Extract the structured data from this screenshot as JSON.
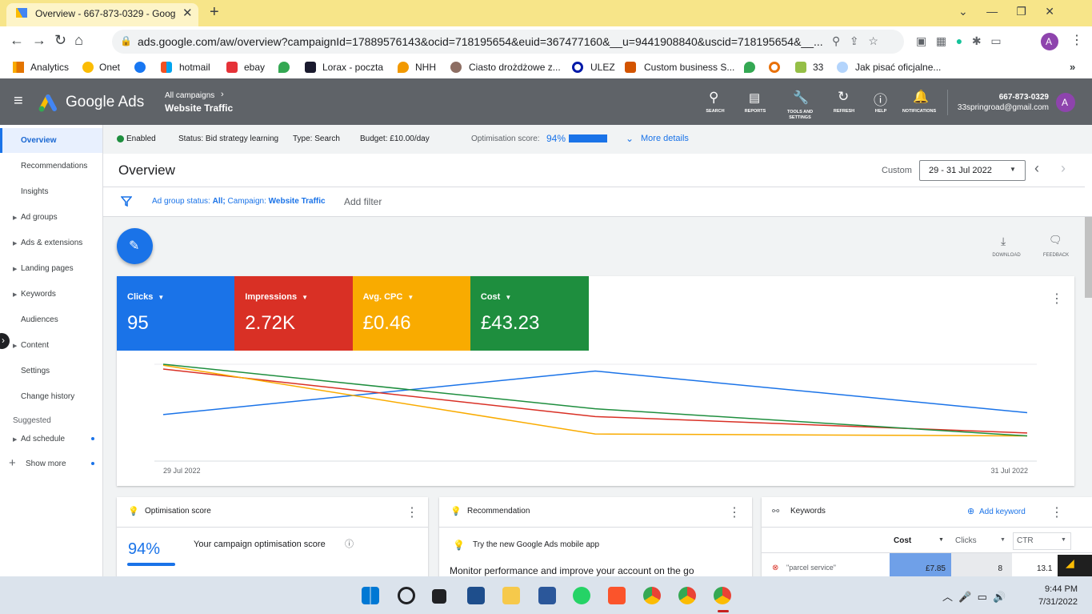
{
  "browser": {
    "tab_title": "Overview - 667-873-0329 - Goog",
    "url": "ads.google.com/aw/overview?campaignId=17889576143&ocid=718195654&euid=367477160&__u=9441908840&uscid=718195654&__...",
    "profile_initial": "A",
    "bookmarks": [
      "Analytics",
      "Onet",
      "hotmail",
      "ebay",
      "Lorax - poczta",
      "NHH",
      "Ciasto drożdżowe z...",
      "ULEZ",
      "Custom business S...",
      "33",
      "Jak pisać oficjalne..."
    ]
  },
  "header": {
    "brand": "Google Ads",
    "breadcrumb": "All campaigns",
    "campaign": "Website Traffic",
    "tools": [
      "SEARCH",
      "REPORTS",
      "TOOLS AND SETTINGS",
      "REFRESH",
      "HELP",
      "NOTIFICATIONS"
    ],
    "phone": "667-873-0329",
    "email": "33springroad@gmail.com",
    "avatar": "A"
  },
  "status": {
    "enabled": "Enabled",
    "status": "Status: Bid strategy learning",
    "type": "Type: Search",
    "budget": "Budget: £10.00/day",
    "opt_label": "Optimisation score:",
    "opt_value": "94%",
    "more": "More details"
  },
  "nav": {
    "items": [
      "Overview",
      "Recommendations",
      "Insights",
      "Ad groups",
      "Ads & extensions",
      "Landing pages",
      "Keywords",
      "Audiences",
      "Content",
      "Settings",
      "Change history"
    ],
    "suggested": "Suggested",
    "suggested_items": [
      "Ad schedule"
    ],
    "show_more": "Show more"
  },
  "page": {
    "title": "Overview",
    "range_label": "Custom",
    "range": "29 - 31 Jul 2022",
    "filter": [
      "Ad group status:",
      "All;",
      "Campaign:",
      "Website Traffic"
    ],
    "add_filter": "Add filter",
    "actions": [
      "DOWNLOAD",
      "FEEDBACK"
    ]
  },
  "chart_data": {
    "type": "line",
    "categories": [
      "29 Jul 2022",
      null,
      "31 Jul 2022"
    ],
    "ylim": [
      0,
      100
    ],
    "series": [
      {
        "name": "Clicks",
        "total": "95",
        "color": "#1a73e8",
        "values": [
          48,
          93,
          50
        ]
      },
      {
        "name": "Impressions",
        "total": "2.72K",
        "color": "#d93025",
        "values": [
          95,
          46,
          29
        ]
      },
      {
        "name": "Avg. CPC",
        "total": "£0.46",
        "color": "#f9ab00",
        "values": [
          99,
          28,
          26
        ]
      },
      {
        "name": "Cost",
        "total": "£43.23",
        "color": "#1e8e3e",
        "values": [
          100,
          54,
          26
        ]
      }
    ]
  },
  "cards": {
    "optimisation": {
      "title": "Optimisation score",
      "value": "94%",
      "text": "Your campaign optimisation score"
    },
    "recommendation": {
      "title": "Recommendation",
      "tip": "Try the new Google Ads mobile app",
      "text": "Monitor performance and improve your account on the go"
    },
    "keywords": {
      "title": "Keywords",
      "add": "Add keyword",
      "columns": [
        "Cost",
        "Clicks",
        "CTR"
      ],
      "rows": [
        [
          "\"parcel service\"",
          "£7.85",
          "8",
          "13.1"
        ]
      ]
    }
  },
  "taskbar": {
    "time": "9:44 PM",
    "date": "7/31/2022"
  }
}
